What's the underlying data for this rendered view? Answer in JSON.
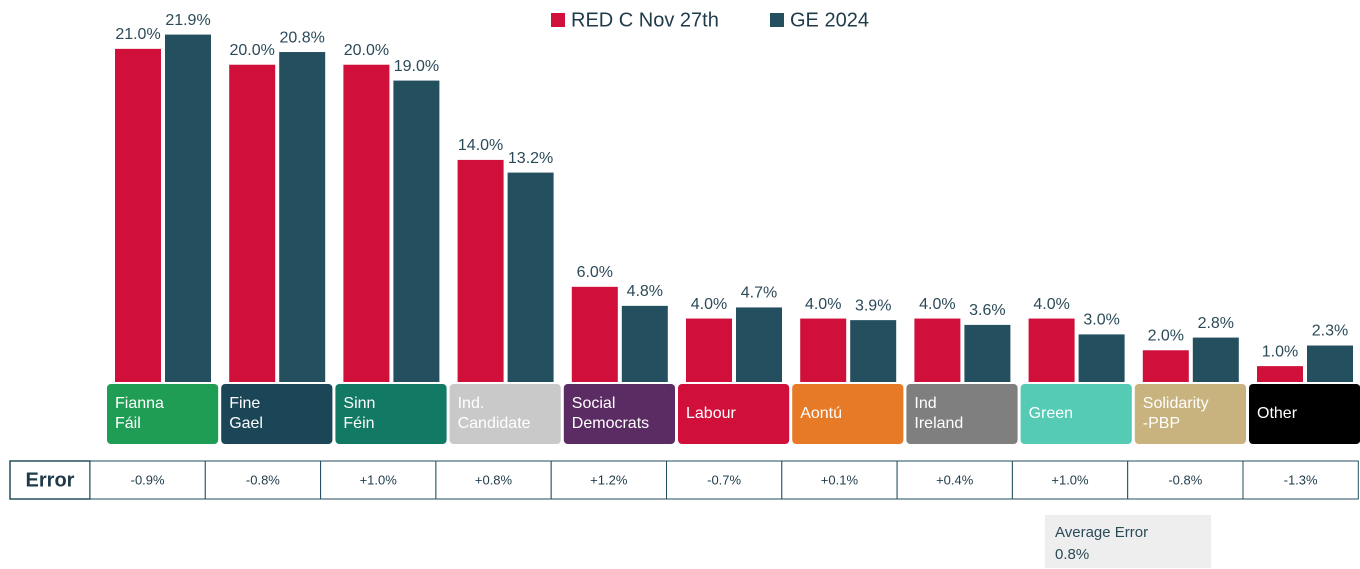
{
  "chart_data": {
    "type": "bar",
    "categories": [
      "Fianna Fáil",
      "Fine Gael",
      "Sinn Féin",
      "Ind. Candidate",
      "Social Democrats",
      "Labour",
      "Aontú",
      "Ind Ireland",
      "Green",
      "Solidarity -PBP",
      "Other"
    ],
    "category_colors": [
      "#1f9d55",
      "#1b4658",
      "#127a64",
      "#c9c9c9",
      "#5b2c63",
      "#d0103a",
      "#e67a26",
      "#7f7f7f",
      "#55cbb6",
      "#c8b27e",
      "#000000"
    ],
    "series": [
      {
        "name": "RED C Nov 27th",
        "color": "#d0103a",
        "values": [
          21.0,
          20.0,
          20.0,
          14.0,
          6.0,
          4.0,
          4.0,
          4.0,
          4.0,
          2.0,
          1.0
        ],
        "value_labels": [
          "21.0%",
          "20.0%",
          "20.0%",
          "14.0%",
          "6.0%",
          "4.0%",
          "4.0%",
          "4.0%",
          "4.0%",
          "2.0%",
          "1.0%"
        ]
      },
      {
        "name": "GE 2024",
        "color": "#234f5f",
        "values": [
          21.9,
          20.8,
          19.0,
          13.2,
          4.8,
          4.7,
          3.9,
          3.6,
          3.0,
          2.8,
          2.3
        ],
        "value_labels": [
          "21.9%",
          "20.8%",
          "19.0%",
          "13.2%",
          "4.8%",
          "4.7%",
          "3.9%",
          "3.6%",
          "3.0%",
          "2.8%",
          "2.3%"
        ]
      }
    ],
    "ylim": [
      0,
      22
    ],
    "legend": "top",
    "error_row": {
      "label": "Error",
      "values": [
        "-0.9%",
        "-0.8%",
        "+1.0%",
        "+0.8%",
        "+1.2%",
        "-0.7%",
        "+0.1%",
        "+0.4%",
        "+1.0%",
        "-0.8%",
        "-1.3%"
      ]
    },
    "average_error": {
      "label": "Average Error",
      "value": "0.8%"
    }
  }
}
